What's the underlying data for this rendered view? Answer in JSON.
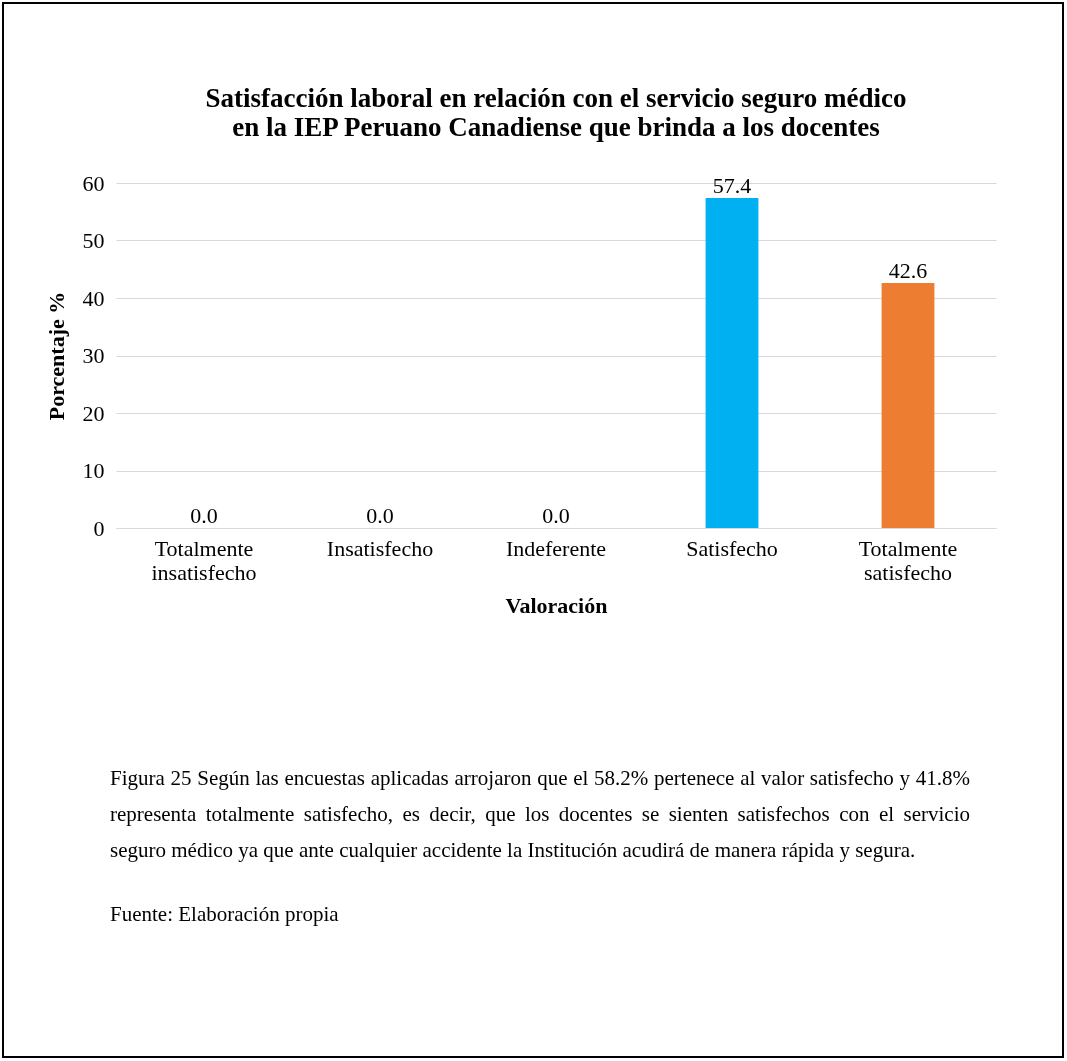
{
  "chart_data": {
    "type": "bar",
    "title": "Satisfacción laboral en relación con el servicio seguro médico\nen la IEP Peruano Canadiense que brinda a los docentes",
    "categories": [
      "Totalmente insatisfecho",
      "Insatisfecho",
      "Indeferente",
      "Satisfecho",
      "Totalmente satisfecho"
    ],
    "values": [
      0.0,
      0.0,
      0.0,
      57.4,
      42.6
    ],
    "colors": [
      "#bf9000",
      "#002060",
      "#8b0000",
      "#00b0f0",
      "#ed7d31"
    ],
    "value_labels": [
      "0.0",
      "0.0",
      "0.0",
      "57.4",
      "42.6"
    ],
    "ylim": [
      0,
      60
    ],
    "yticks": [
      0,
      10,
      20,
      30,
      40,
      50,
      60
    ],
    "grid": "y",
    "xlabel": "Valoración",
    "ylabel": "Porcentaje %",
    "annotations": [
      "Figura 25 Según las encuestas aplicadas arrojaron que el 58.2% pertenece al valor satisfecho y 41.8% representa totalmente satisfecho, es decir, que los docentes se sienten satisfechos con el servicio seguro médico ya que ante cualquier accidente la Institución acudirá de manera rápida y segura.",
      "Fuente: Elaboración propia"
    ]
  }
}
